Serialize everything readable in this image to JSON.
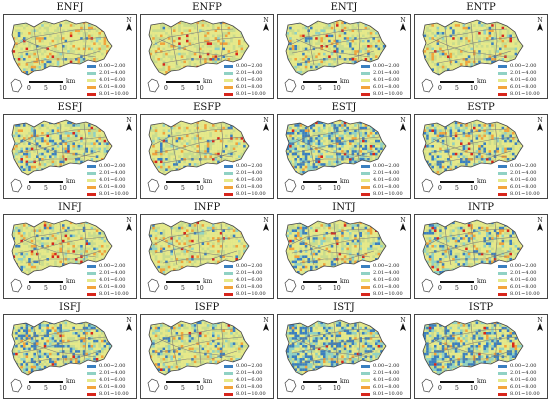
{
  "figure": {
    "panels": [
      {
        "title": "ENFJ",
        "blue": 0.08
      },
      {
        "title": "ENFP",
        "blue": 0.03
      },
      {
        "title": "ENTJ",
        "blue": 0.14
      },
      {
        "title": "ENTP",
        "blue": 0.1
      },
      {
        "title": "ESFJ",
        "blue": 0.2
      },
      {
        "title": "ESFP",
        "blue": 0.1
      },
      {
        "title": "ESTJ",
        "blue": 0.42
      },
      {
        "title": "ESTP",
        "blue": 0.22
      },
      {
        "title": "INFJ",
        "blue": 0.1
      },
      {
        "title": "INFP",
        "blue": 0.08
      },
      {
        "title": "INTJ",
        "blue": 0.22
      },
      {
        "title": "INTP",
        "blue": 0.25
      },
      {
        "title": "ISFJ",
        "blue": 0.32
      },
      {
        "title": "ISFP",
        "blue": 0.18
      },
      {
        "title": "ISTJ",
        "blue": 0.48
      },
      {
        "title": "ISTP",
        "blue": 0.45
      }
    ],
    "legend": [
      {
        "label": "0.00~2.00",
        "color": "#3a7fc0"
      },
      {
        "label": "2.01~4.00",
        "color": "#8fd1c4"
      },
      {
        "label": "4.01~6.00",
        "color": "#e6e98a"
      },
      {
        "label": "6.01~8.00",
        "color": "#f2a33b"
      },
      {
        "label": "8.01~10.00",
        "color": "#d8261c"
      }
    ],
    "scale": {
      "ticks": [
        "0",
        "5",
        "10"
      ],
      "unit": "km"
    },
    "north_label": "N",
    "colors": {
      "outline": "#444444",
      "road": "#7a7a7a",
      "base": "#c9dc8e"
    }
  }
}
